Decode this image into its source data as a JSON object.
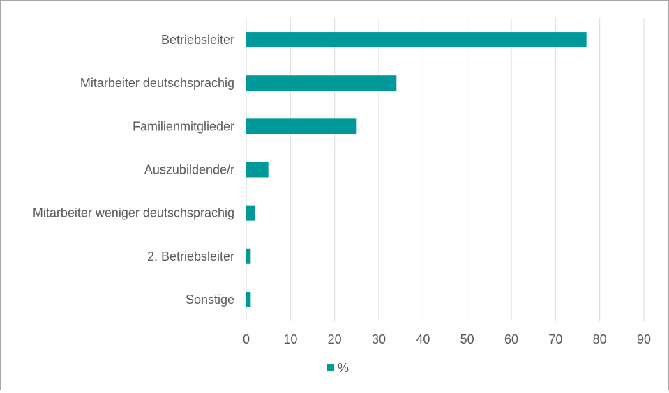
{
  "chart_data": {
    "type": "bar",
    "orientation": "horizontal",
    "categories": [
      "Betriebsleiter",
      "Mitarbeiter deutschsprachig",
      "Familienmitglieder",
      "Auszubildende/r",
      "Mitarbeiter weniger deutschsprachig",
      "2. Betriebsleiter",
      "Sonstige"
    ],
    "series": [
      {
        "name": "%",
        "values": [
          77,
          34,
          25,
          5,
          2,
          1,
          1
        ],
        "color": "#009999"
      }
    ],
    "xlim": [
      0,
      90
    ],
    "xticks": [
      "0",
      "10",
      "20",
      "30",
      "40",
      "50",
      "60",
      "70",
      "80",
      "90"
    ],
    "grid": "vertical",
    "legend_position": "bottom"
  }
}
